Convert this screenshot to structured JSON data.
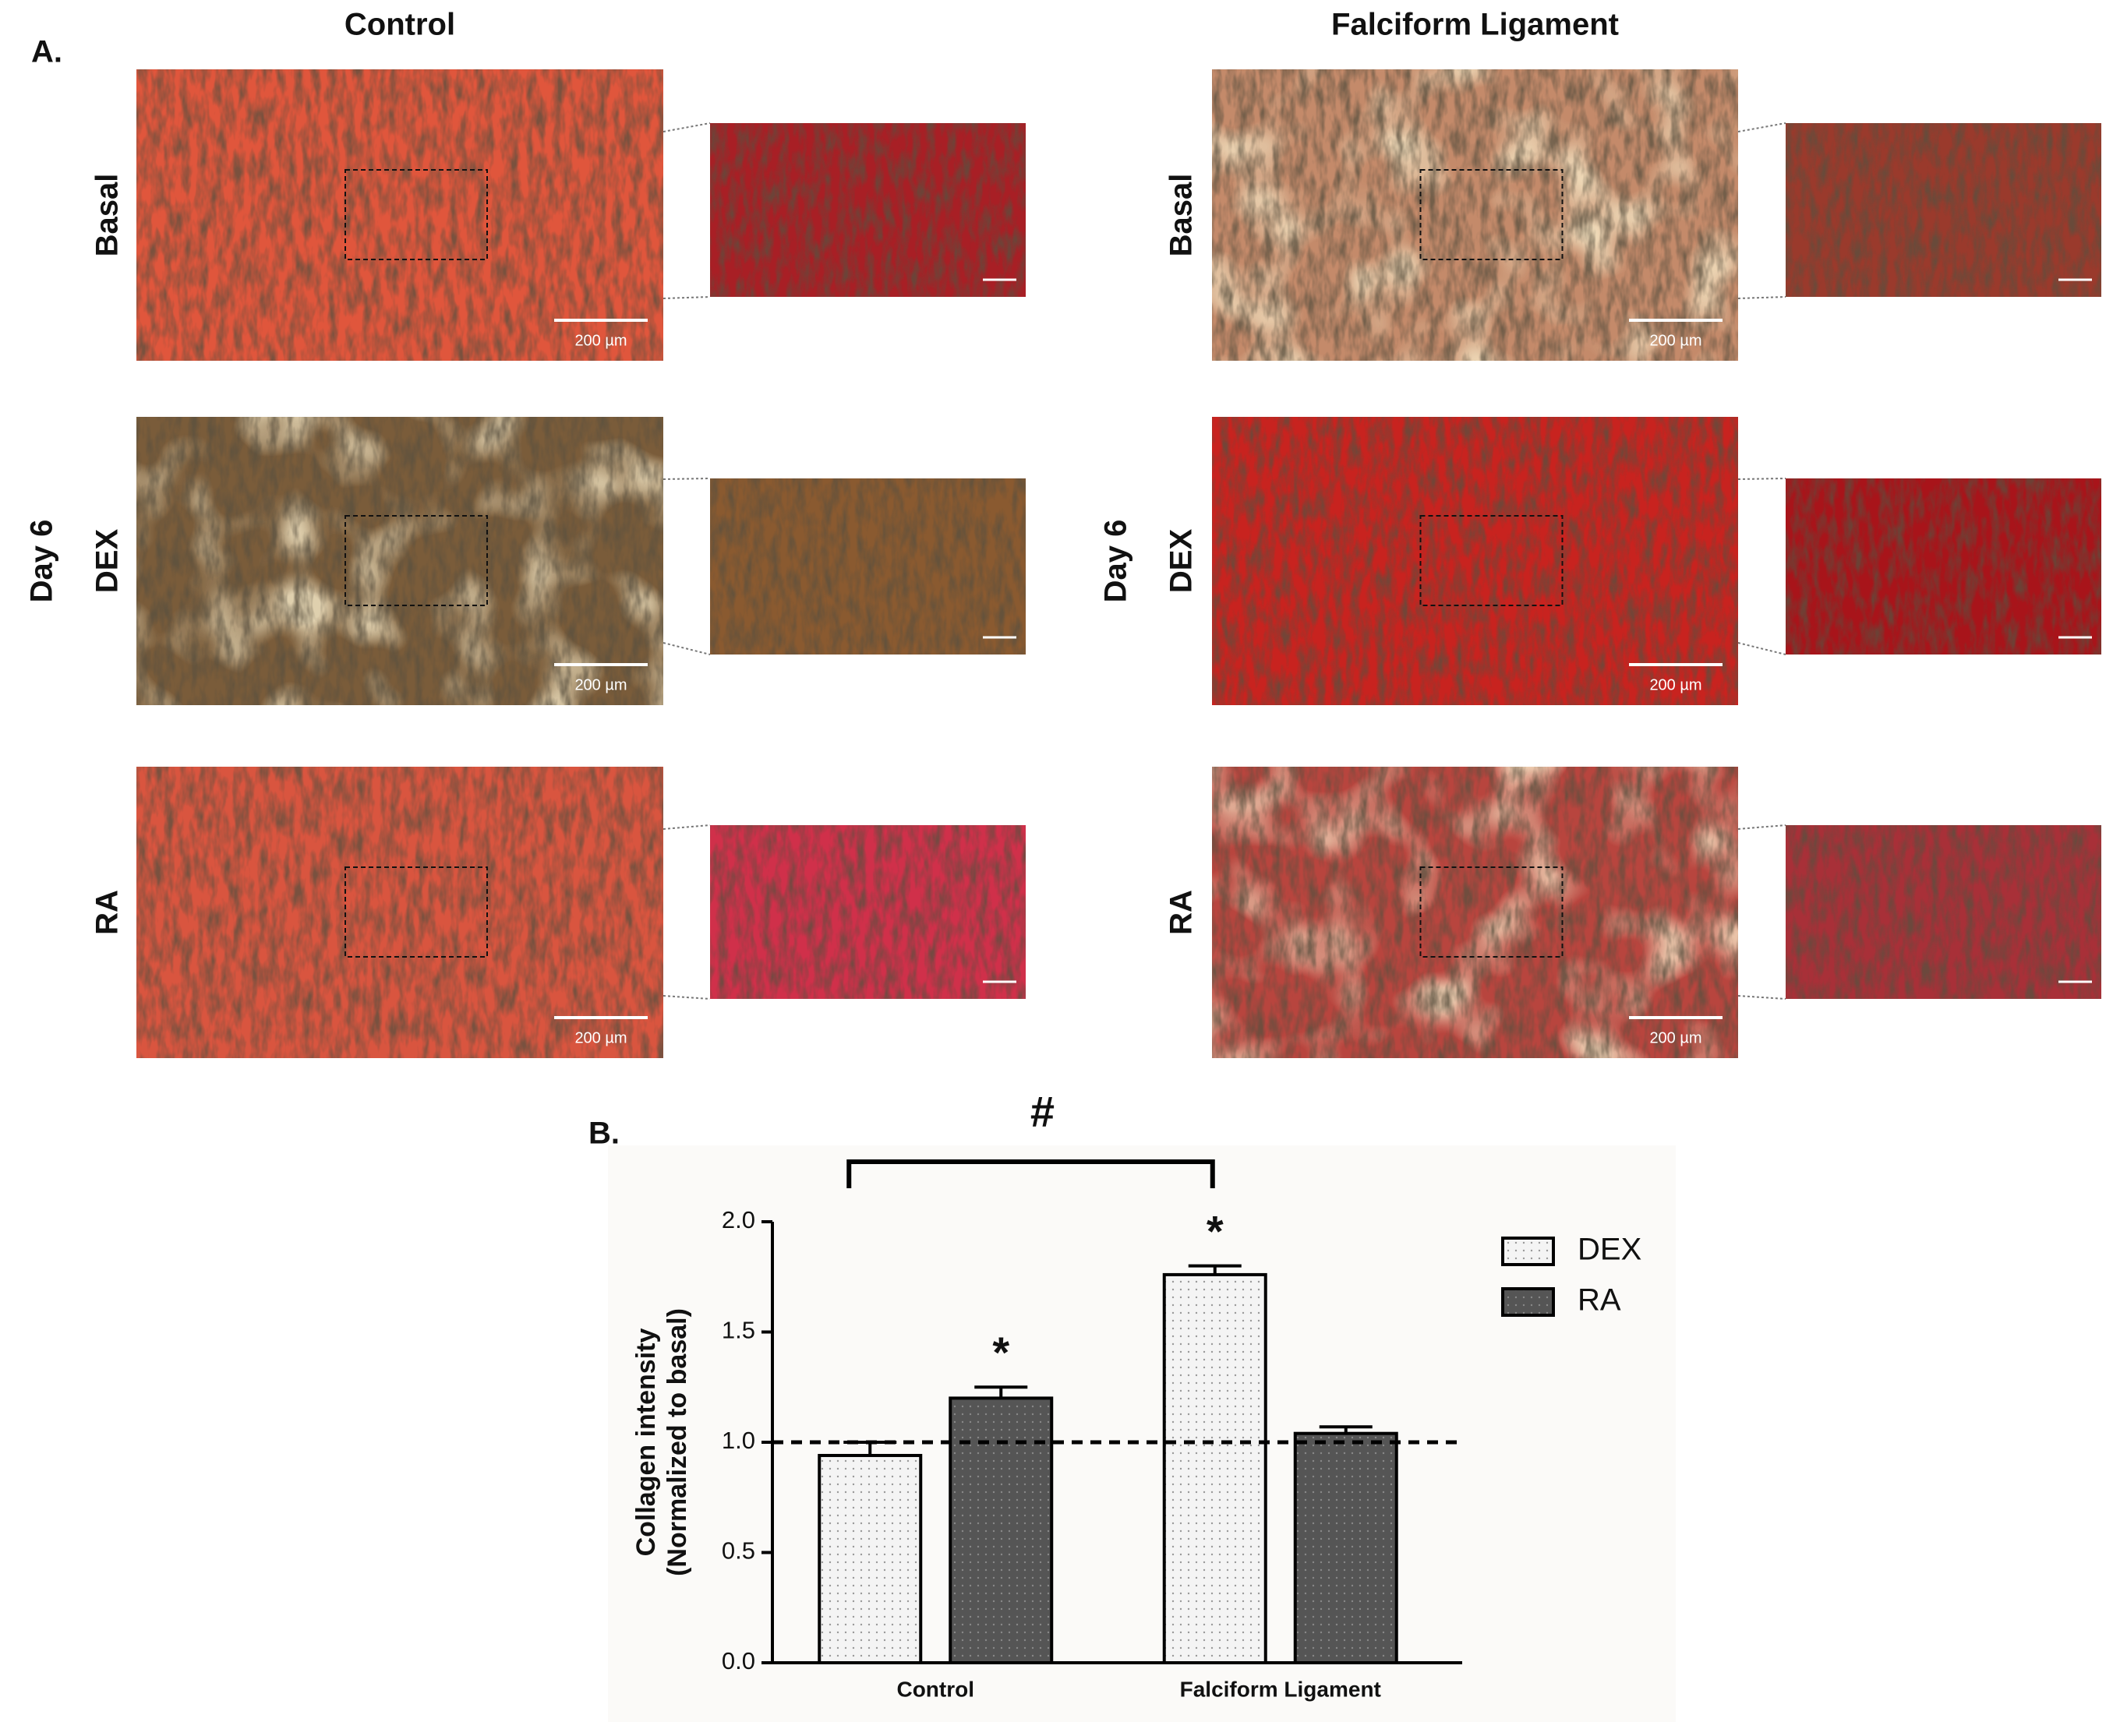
{
  "panel_a": {
    "label": "A.",
    "columns": [
      "Control",
      "Falciform Ligament"
    ],
    "rows": [
      "Basal",
      "DEX",
      "RA"
    ],
    "time_label": "Day 6",
    "scale_bar": "200 µm"
  },
  "panel_b_label": "B.",
  "chart_data": {
    "type": "bar",
    "y_label": [
      "Collagen intensity",
      "(Normalized to basal)"
    ],
    "categories": [
      "Control",
      "Falciform Ligament"
    ],
    "series": [
      {
        "name": "DEX",
        "color": "#f4f4f4",
        "values": [
          0.94,
          1.76
        ],
        "errors": [
          0.06,
          0.04
        ],
        "annotations": [
          null,
          "*"
        ]
      },
      {
        "name": "RA",
        "color": "#555555",
        "values": [
          1.2,
          1.04
        ],
        "errors": [
          0.05,
          0.03
        ],
        "annotations": [
          "*",
          null
        ]
      }
    ],
    "ylim": [
      0,
      2
    ],
    "yticks": [
      {
        "value": 0,
        "label": "0.0"
      },
      0.5,
      {
        "value": 1,
        "label": "1.0"
      },
      1.5,
      {
        "value": 2,
        "label": "2.0"
      }
    ],
    "reference_line": {
      "value": 1,
      "label": null
    },
    "bracket_label": "#",
    "legend": "right"
  }
}
